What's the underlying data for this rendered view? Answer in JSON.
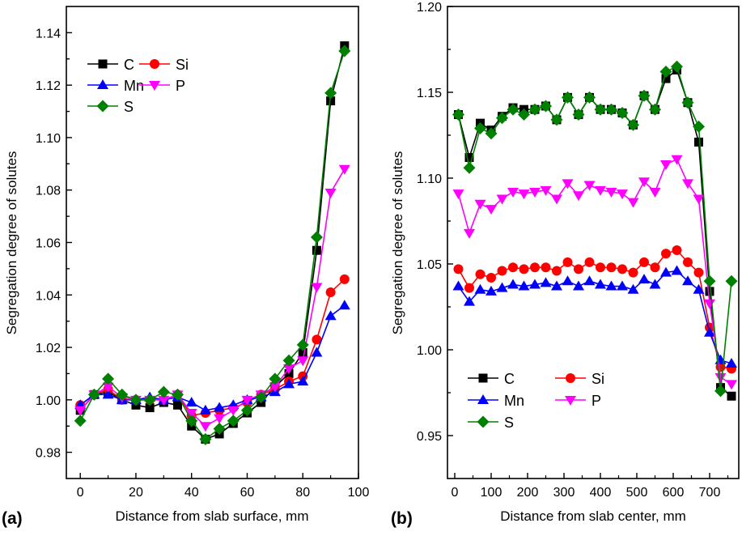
{
  "chart_data": [
    {
      "type": "line",
      "panel_label": "(a)",
      "xlabel": "Distance from slab surface, mm",
      "ylabel": "Segregation degree of solutes",
      "xlim": [
        -5,
        100
      ],
      "ylim": [
        0.97,
        1.15
      ],
      "xticks": [
        "0",
        "20",
        "40",
        "60",
        "80",
        "100"
      ],
      "yticks": [
        "0.98",
        "1.00",
        "1.02",
        "1.04",
        "1.06",
        "1.08",
        "1.10",
        "1.12",
        "1.14"
      ],
      "legend": "top-left",
      "x": [
        0,
        5,
        10,
        15,
        20,
        25,
        30,
        35,
        40,
        45,
        50,
        55,
        60,
        65,
        70,
        75,
        80,
        85,
        90,
        95
      ],
      "series": [
        {
          "name": "C",
          "color": "#000000",
          "marker": "square",
          "values": [
            0.996,
            1.002,
            1.003,
            1.0,
            0.998,
            0.997,
            0.999,
            0.998,
            0.99,
            0.985,
            0.987,
            0.991,
            0.995,
            0.999,
            1.005,
            1.01,
            1.018,
            1.057,
            1.114,
            1.135
          ]
        },
        {
          "name": "Si",
          "color": "#ff0000",
          "marker": "circle",
          "values": [
            0.998,
            1.002,
            1.004,
            1.0,
            1.0,
            1.0,
            1.0,
            1.002,
            0.994,
            0.995,
            0.996,
            0.997,
            0.999,
            1.002,
            1.004,
            1.007,
            1.009,
            1.023,
            1.041,
            1.046
          ]
        },
        {
          "name": "Mn",
          "color": "#0000ff",
          "marker": "triangle-up",
          "values": [
            0.998,
            1.002,
            1.002,
            1.0,
            1.0,
            1.001,
            1.0,
            1.001,
            0.999,
            0.996,
            0.997,
            0.998,
            1.0,
            1.001,
            1.003,
            1.006,
            1.007,
            1.018,
            1.032,
            1.036
          ]
        },
        {
          "name": "P",
          "color": "#ff00ff",
          "marker": "triangle-down",
          "values": [
            0.996,
            1.002,
            1.005,
            1.001,
            1.0,
            1.0,
            1.0,
            1.002,
            0.995,
            0.99,
            0.993,
            0.996,
            1.0,
            1.002,
            1.005,
            1.012,
            1.015,
            1.043,
            1.079,
            1.088
          ]
        },
        {
          "name": "S",
          "color": "#008000",
          "marker": "diamond",
          "values": [
            0.992,
            1.002,
            1.008,
            1.002,
            1.0,
            1.0,
            1.003,
            1.002,
            0.992,
            0.985,
            0.989,
            0.992,
            0.996,
            1.001,
            1.008,
            1.015,
            1.021,
            1.062,
            1.117,
            1.133
          ]
        }
      ]
    },
    {
      "type": "line",
      "panel_label": "(b)",
      "xlabel": "Distance from slab center, mm",
      "ylabel": "Segregation degree of solutes",
      "xlim": [
        -20,
        780
      ],
      "ylim": [
        0.925,
        1.2
      ],
      "xticks": [
        "0",
        "100",
        "200",
        "300",
        "400",
        "500",
        "600",
        "700"
      ],
      "yticks": [
        "0.95",
        "1.00",
        "1.05",
        "1.10",
        "1.15",
        "1.20"
      ],
      "legend": "bottom-left",
      "x": [
        10,
        40,
        70,
        100,
        130,
        160,
        190,
        220,
        250,
        280,
        310,
        340,
        370,
        400,
        430,
        460,
        490,
        520,
        550,
        580,
        610,
        640,
        670,
        700,
        730,
        760
      ],
      "series": [
        {
          "name": "C",
          "color": "#000000",
          "marker": "square",
          "values": [
            1.137,
            1.112,
            1.132,
            1.128,
            1.136,
            1.141,
            1.14,
            1.14,
            1.142,
            1.134,
            1.147,
            1.137,
            1.147,
            1.14,
            1.14,
            1.138,
            1.131,
            1.148,
            1.14,
            1.158,
            1.163,
            1.144,
            1.121,
            1.034,
            0.978,
            0.973
          ]
        },
        {
          "name": "Si",
          "color": "#ff0000",
          "marker": "circle",
          "values": [
            1.047,
            1.036,
            1.044,
            1.042,
            1.046,
            1.048,
            1.047,
            1.048,
            1.048,
            1.046,
            1.051,
            1.047,
            1.051,
            1.048,
            1.048,
            1.047,
            1.045,
            1.051,
            1.048,
            1.056,
            1.058,
            1.051,
            1.045,
            1.013,
            0.99,
            0.989
          ]
        },
        {
          "name": "Mn",
          "color": "#0000ff",
          "marker": "triangle-up",
          "values": [
            1.037,
            1.028,
            1.035,
            1.034,
            1.036,
            1.038,
            1.037,
            1.038,
            1.039,
            1.037,
            1.04,
            1.037,
            1.04,
            1.038,
            1.037,
            1.037,
            1.035,
            1.041,
            1.038,
            1.045,
            1.046,
            1.04,
            1.035,
            1.01,
            0.994,
            0.992
          ]
        },
        {
          "name": "P",
          "color": "#ff00ff",
          "marker": "triangle-down",
          "values": [
            1.091,
            1.068,
            1.085,
            1.082,
            1.088,
            1.092,
            1.091,
            1.092,
            1.093,
            1.088,
            1.097,
            1.09,
            1.096,
            1.093,
            1.092,
            1.091,
            1.086,
            1.098,
            1.092,
            1.108,
            1.111,
            1.097,
            1.088,
            1.027,
            0.984,
            0.98
          ]
        },
        {
          "name": "S",
          "color": "#008000",
          "marker": "diamond",
          "values": [
            1.137,
            1.106,
            1.129,
            1.126,
            1.135,
            1.14,
            1.137,
            1.14,
            1.142,
            1.134,
            1.147,
            1.137,
            1.147,
            1.14,
            1.14,
            1.138,
            1.131,
            1.148,
            1.14,
            1.162,
            1.165,
            1.144,
            1.13,
            1.04,
            0.976,
            1.04
          ]
        }
      ]
    }
  ]
}
